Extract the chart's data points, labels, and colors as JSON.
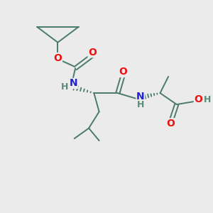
{
  "bg_color": "#ebebeb",
  "bond_color": "#4a7a6a",
  "bond_lw": 1.4,
  "atom_colors": {
    "O": "#ee1111",
    "N": "#2222cc",
    "H": "#5a8a7a",
    "C": "#4a7a6a"
  }
}
